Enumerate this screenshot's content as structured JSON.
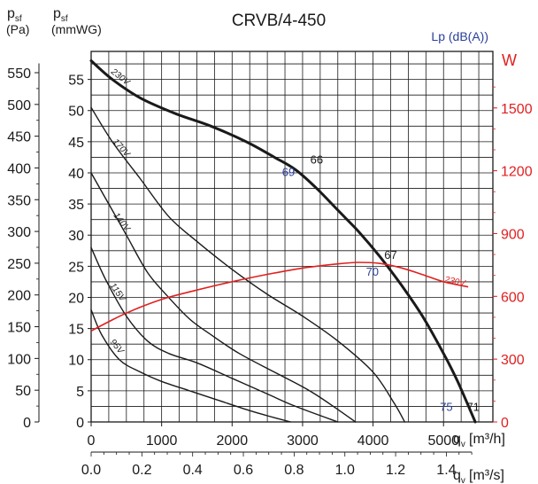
{
  "chart_data": {
    "type": "line",
    "title": "CRVB/4-450",
    "y_pa_label": {
      "main": "p",
      "sub": "sf",
      "unit": "(Pa)"
    },
    "y_mmwg_label": {
      "main": "p",
      "sub": "sf",
      "unit": "(mmWG)"
    },
    "lp_label": "Lp (dB(A))",
    "w_label": "W",
    "x_m3h_label": {
      "main": "q",
      "sub": "v",
      "unit": "[m³/h]"
    },
    "x_m3s_label": {
      "main": "q",
      "sub": "v",
      "unit": "[m³/s]"
    },
    "x_m3h_ticks": [
      "0",
      "1000",
      "2000",
      "3000",
      "4000",
      "5000"
    ],
    "x_m3s_ticks": [
      "0.0",
      "0.2",
      "0.4",
      "0.6",
      "0.8",
      "1.0",
      "1.2",
      "1.4"
    ],
    "y_mmwg_ticks": [
      "0",
      "5",
      "10",
      "15",
      "20",
      "25",
      "30",
      "35",
      "40",
      "45",
      "50",
      "55"
    ],
    "y_pa_ticks": [
      "0",
      "50",
      "100",
      "150",
      "200",
      "250",
      "300",
      "350",
      "400",
      "450",
      "500",
      "550"
    ],
    "w_ticks": [
      "0",
      "300",
      "600",
      "900",
      "1200",
      "1500"
    ],
    "xlim_m3h": [
      0,
      5700
    ],
    "ylim_mmwg": [
      0,
      59.5
    ],
    "wlim": [
      0,
      1770
    ],
    "colors": {
      "curve": "#1a1a1a",
      "power": "#e02020",
      "sound": "#2a3f9a",
      "grid": "#1a1a1a"
    },
    "fan_curves": [
      {
        "name": "230V",
        "bold": true,
        "x": [
          0,
          300,
          700,
          1200,
          1700,
          2200,
          2600,
          2900,
          3200,
          3500,
          3800,
          4100,
          4400,
          4700,
          5000,
          5200,
          5450
        ],
        "y": [
          58,
          55,
          52,
          49.5,
          47.5,
          45,
          42.5,
          40.5,
          37.5,
          34,
          30.5,
          26.5,
          22,
          17,
          11,
          6.5,
          0
        ]
      },
      {
        "name": "170V",
        "bold": false,
        "x": [
          0,
          300,
          700,
          1100,
          1500,
          2000,
          2500,
          3000,
          3500,
          4000,
          4300,
          4450
        ],
        "y": [
          50.5,
          45,
          39,
          33,
          29,
          24.5,
          20.5,
          17,
          13,
          8,
          3,
          0
        ]
      },
      {
        "name": "140V",
        "bold": false,
        "x": [
          0,
          200,
          500,
          800,
          1100,
          1400,
          1700,
          2100,
          2600,
          3100,
          3500,
          3750
        ],
        "y": [
          40,
          36,
          30,
          24,
          20,
          16.5,
          14,
          11,
          8,
          5,
          2,
          0
        ]
      },
      {
        "name": "115V",
        "bold": false,
        "x": [
          0,
          200,
          500,
          800,
          1100,
          1500,
          2000,
          2500,
          2900,
          3500
        ],
        "y": [
          28,
          23,
          17,
          13,
          11,
          9.5,
          7,
          4.5,
          2.5,
          0
        ]
      },
      {
        "name": "95V",
        "bold": false,
        "x": [
          0,
          150,
          400,
          700,
          1000,
          1400,
          1800,
          2200,
          2500,
          2830
        ],
        "y": [
          18,
          14,
          10,
          8,
          6.5,
          5,
          3.5,
          2,
          1,
          0
        ]
      }
    ],
    "power_curve": {
      "name": "230V",
      "x": [
        0,
        500,
        1000,
        1500,
        2000,
        2500,
        3000,
        3500,
        3800,
        4100,
        4400,
        4700,
        5000,
        5350
      ],
      "y": [
        435,
        520,
        585,
        630,
        670,
        705,
        735,
        755,
        762,
        757,
        736,
        704,
        670,
        645
      ]
    },
    "sound_levels": [
      {
        "value": "66",
        "x": 3200,
        "y": 41.5,
        "color": "black"
      },
      {
        "value": "69",
        "x": 2800,
        "y": 39.5,
        "color": "blue"
      },
      {
        "value": "67",
        "x": 4250,
        "y": 26.2,
        "color": "black"
      },
      {
        "value": "70",
        "x": 3990,
        "y": 23.5,
        "color": "blue"
      },
      {
        "value": "75",
        "x": 5040,
        "y": 1.8,
        "color": "blue"
      },
      {
        "value": "71",
        "x": 5420,
        "y": 1.8,
        "color": "black"
      }
    ]
  }
}
